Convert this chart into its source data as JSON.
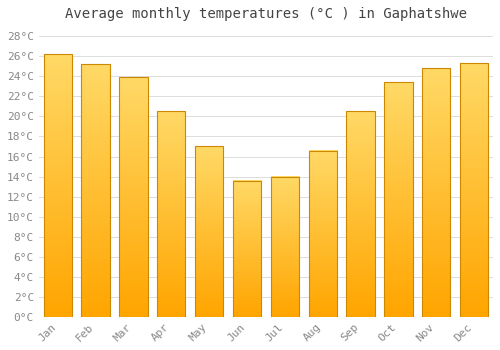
{
  "title": "Average monthly temperatures (°C ) in Gaphatshwe",
  "months": [
    "Jan",
    "Feb",
    "Mar",
    "Apr",
    "May",
    "Jun",
    "Jul",
    "Aug",
    "Sep",
    "Oct",
    "Nov",
    "Dec"
  ],
  "values": [
    26.2,
    25.2,
    23.9,
    20.5,
    17.0,
    13.6,
    14.0,
    16.6,
    20.5,
    23.4,
    24.8,
    25.3
  ],
  "bar_color_top": "#FFD966",
  "bar_color_bottom": "#FFA500",
  "bar_edge_color": "#CC8800",
  "ylim": [
    0,
    29
  ],
  "ytick_step": 2,
  "background_color": "#FFFFFF",
  "grid_color": "#DDDDDD",
  "title_fontsize": 10,
  "tick_fontsize": 8,
  "bar_width": 0.75
}
